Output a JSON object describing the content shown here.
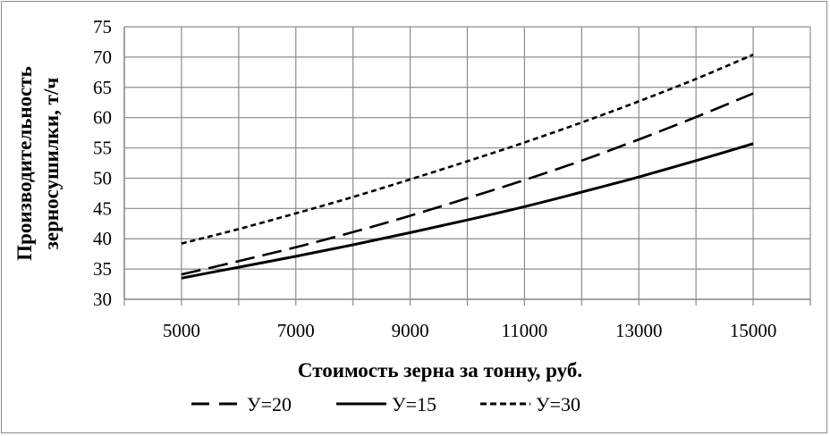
{
  "chart_data": {
    "type": "line",
    "xlabel": "Стоимость зерна за тонну, руб.",
    "ylabel_line1": "Производительность",
    "ylabel_line2": "зерносушилки, т/ч",
    "xlim": [
      4000,
      16000
    ],
    "ylim": [
      30,
      75
    ],
    "x_ticks": [
      5000,
      7000,
      9000,
      11000,
      13000,
      15000
    ],
    "y_ticks": [
      30,
      35,
      40,
      45,
      50,
      55,
      60,
      65,
      70,
      75
    ],
    "grid": true,
    "legend_position": "bottom",
    "series": [
      {
        "name": "У=20",
        "style": "long-dash",
        "x": [
          5000,
          6000,
          7000,
          8000,
          9000,
          10000,
          11000,
          12000,
          13000,
          14000,
          15000
        ],
        "values": [
          34.1,
          36.3,
          38.6,
          41.1,
          43.8,
          46.7,
          49.7,
          52.9,
          56.4,
          60.1,
          64.0
        ]
      },
      {
        "name": "У=15",
        "style": "solid",
        "x": [
          5000,
          6000,
          7000,
          8000,
          9000,
          10000,
          11000,
          12000,
          13000,
          14000,
          15000
        ],
        "values": [
          33.5,
          35.3,
          37.1,
          39.0,
          41.0,
          43.1,
          45.3,
          47.7,
          50.2,
          52.9,
          55.7
        ]
      },
      {
        "name": "У=30",
        "style": "short-dash",
        "x": [
          5000,
          6000,
          7000,
          8000,
          9000,
          10000,
          11000,
          12000,
          13000,
          14000,
          15000
        ],
        "values": [
          39.2,
          41.6,
          44.2,
          46.9,
          49.8,
          52.8,
          55.9,
          59.2,
          62.7,
          66.4,
          70.4
        ]
      }
    ],
    "colors": {
      "line": "#000000",
      "grid": "#8c8c8c",
      "axis": "#8c8c8c"
    }
  }
}
